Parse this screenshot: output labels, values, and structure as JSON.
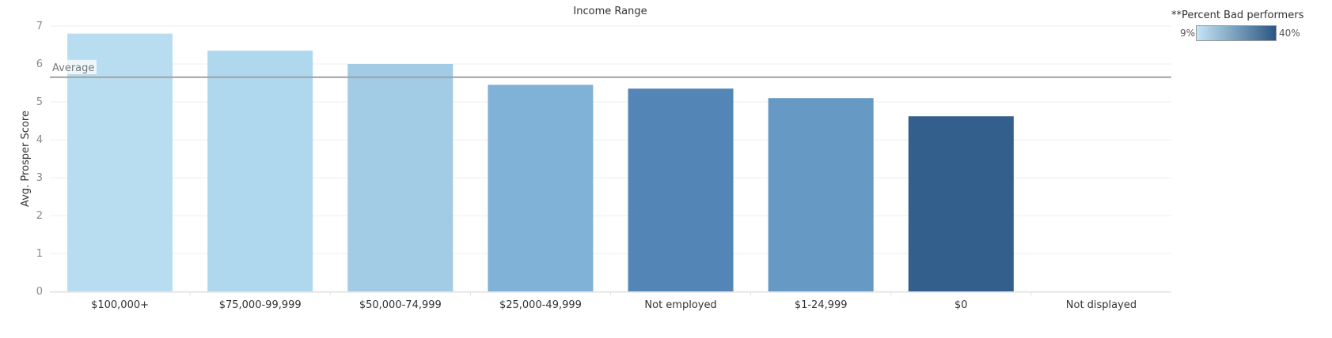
{
  "chart_data": {
    "type": "bar",
    "title": "Income Range",
    "xlabel": "",
    "ylabel": "Avg. Prosper Score",
    "ylim": [
      0,
      7
    ],
    "yticks": [
      0,
      1,
      2,
      3,
      4,
      5,
      6,
      7
    ],
    "grid": true,
    "categories": [
      "$100,000+",
      "$75,000-99,999",
      "$50,000-74,999",
      "$25,000-49,999",
      "Not employed",
      "$1-24,999",
      "$0",
      "Not displayed"
    ],
    "values": [
      6.8,
      6.35,
      6.0,
      5.45,
      5.35,
      5.1,
      4.62,
      null
    ],
    "bar_colors": [
      "#b9ddf0",
      "#afd7ee",
      "#a2cbe6",
      "#80b1d7",
      "#5386b6",
      "#6699c3",
      "#325f8b",
      null
    ],
    "reference_line": {
      "label": "Average",
      "value": 5.65,
      "color": "#a0a0a0"
    },
    "legend": {
      "title": "**Percent Bad performers",
      "min_label": "9%",
      "max_label": "40%",
      "color_min": "#c5e5f5",
      "color_max": "#2a5783",
      "placement": "top-right"
    }
  }
}
